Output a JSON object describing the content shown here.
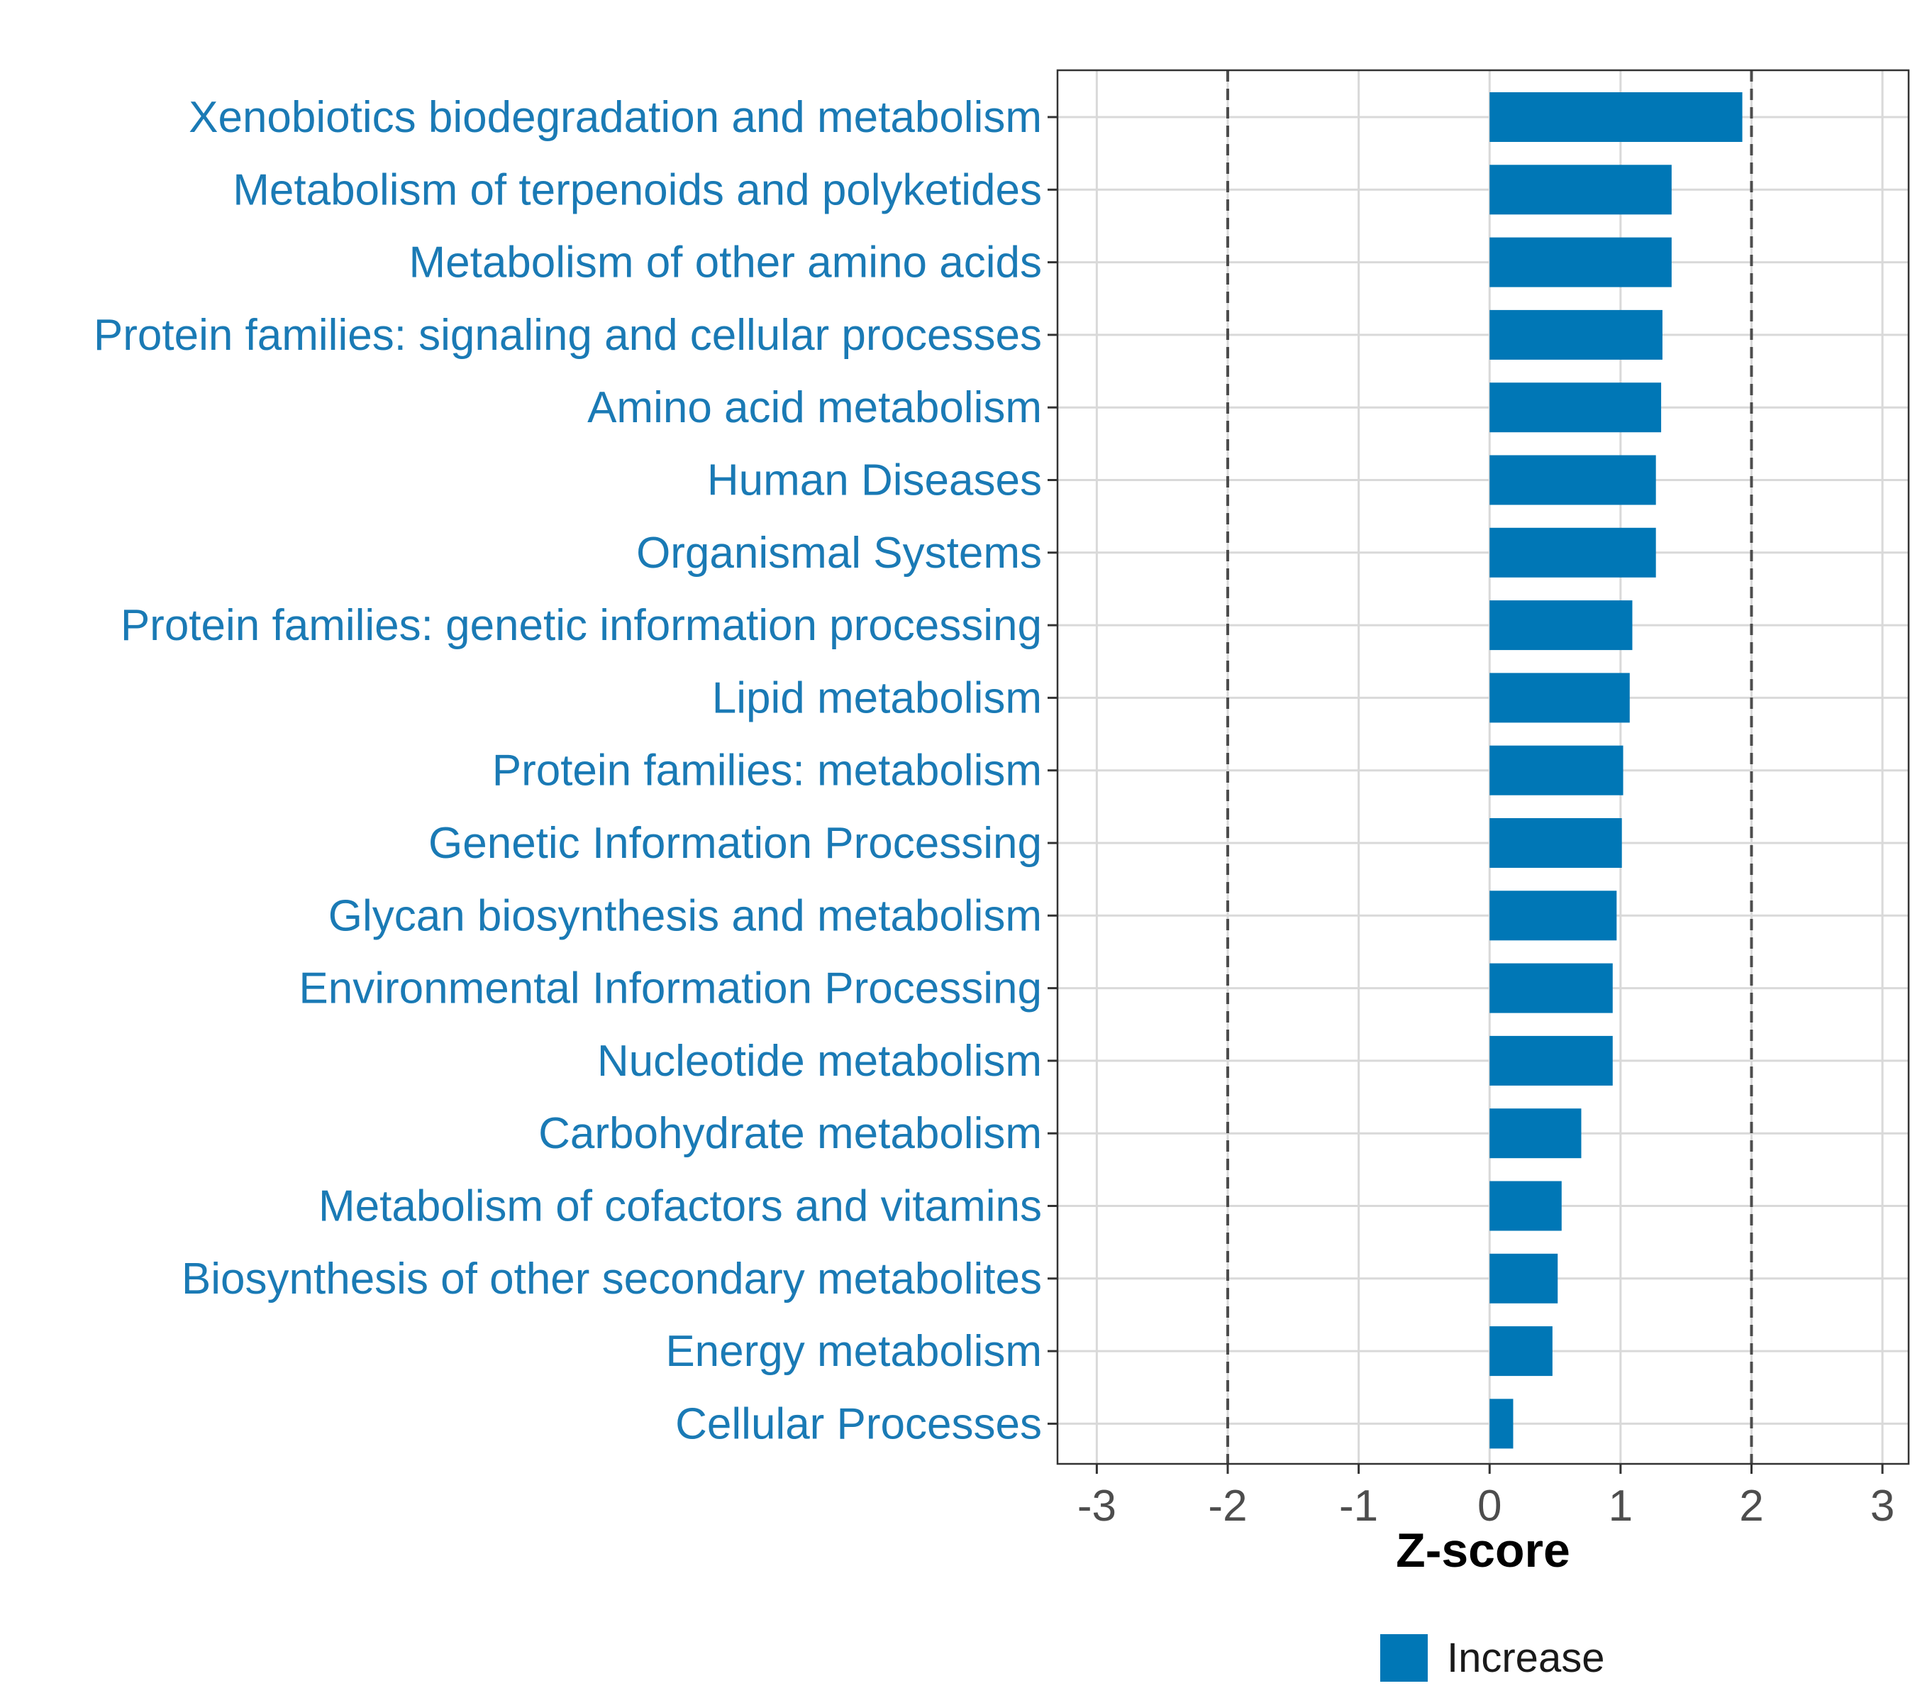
{
  "chart_data": {
    "type": "bar",
    "orientation": "horizontal",
    "categories": [
      "Xenobiotics biodegradation and metabolism",
      "Metabolism of terpenoids and polyketides",
      "Metabolism of other amino acids",
      "Protein families: signaling and cellular processes",
      "Amino acid metabolism",
      "Human Diseases",
      "Organismal Systems",
      "Protein families: genetic information processing",
      "Lipid metabolism",
      "Protein families: metabolism",
      "Genetic Information Processing",
      "Glycan biosynthesis and metabolism",
      "Environmental Information Processing",
      "Nucleotide metabolism",
      "Carbohydrate metabolism",
      "Metabolism of cofactors and vitamins",
      "Biosynthesis of other secondary metabolites",
      "Energy metabolism",
      "Cellular Processes"
    ],
    "values": [
      1.93,
      1.39,
      1.39,
      1.32,
      1.31,
      1.27,
      1.27,
      1.09,
      1.07,
      1.02,
      1.01,
      0.97,
      0.94,
      0.94,
      0.7,
      0.55,
      0.52,
      0.48,
      0.18
    ],
    "xlabel": "Z-score",
    "ylabel": "",
    "xlim": [
      -3.3,
      3.2
    ],
    "xticks": [
      -3,
      -2,
      -1,
      0,
      1,
      2,
      3
    ],
    "xtick_labels": [
      "-3",
      "-2",
      "-1",
      "0",
      "1",
      "2",
      "3"
    ],
    "reference_lines": [
      -2,
      2
    ],
    "grid": true,
    "legend": {
      "position": "bottom",
      "entries": [
        {
          "label": "Increase",
          "color": "#0077b6"
        }
      ]
    }
  },
  "colors": {
    "bar": "#0077b6",
    "category_label": "#1a7ab5",
    "grid": "#d9d9d9",
    "reference_line": "#4d4d4d"
  }
}
